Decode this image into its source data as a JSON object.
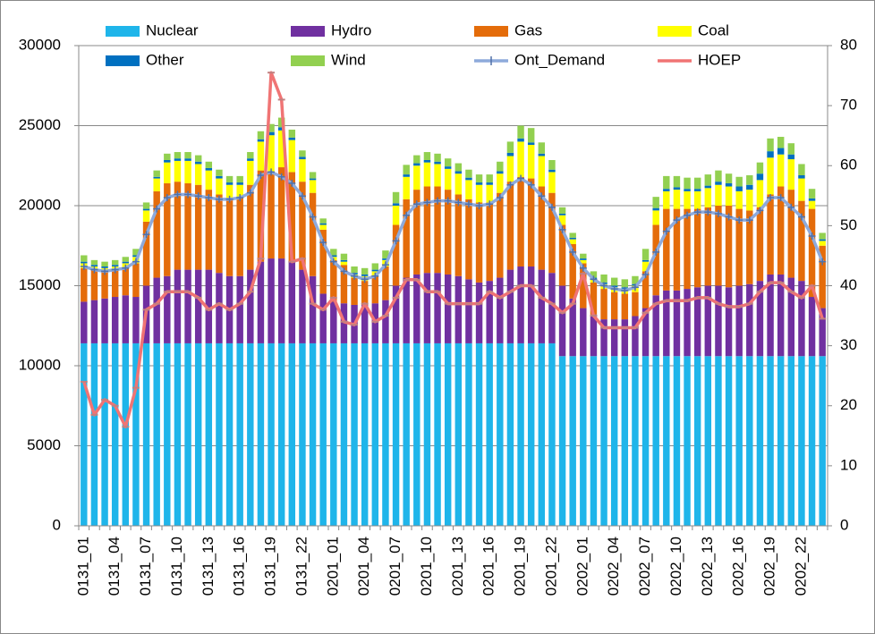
{
  "chart_data": {
    "type": "bar",
    "stacked": true,
    "grid": true,
    "categories": [
      "0131_01",
      null,
      null,
      "0131_04",
      null,
      null,
      "0131_07",
      null,
      null,
      "0131_10",
      null,
      null,
      "0131_13",
      null,
      null,
      "0131_16",
      null,
      null,
      "0131_19",
      null,
      null,
      "0131_22",
      null,
      null,
      "0201_01",
      null,
      null,
      "0201_04",
      null,
      null,
      "0201_07",
      null,
      null,
      "0201_10",
      null,
      null,
      "0201_13",
      null,
      null,
      "0201_16",
      null,
      null,
      "0201_19",
      null,
      null,
      "0201_22",
      null,
      null,
      "0202_01",
      null,
      null,
      "0202_04",
      null,
      null,
      "0202_07",
      null,
      null,
      "0202_10",
      null,
      null,
      "0202_13",
      null,
      null,
      "0202_16",
      null,
      null,
      "0202_19",
      null,
      null,
      "0202_22",
      null,
      null
    ],
    "ylim": [
      0,
      30000
    ],
    "yticks": [
      0,
      5000,
      10000,
      15000,
      20000,
      25000,
      30000
    ],
    "y2lim": [
      0,
      80
    ],
    "y2ticks": [
      0,
      10,
      20,
      30,
      40,
      50,
      60,
      70,
      80
    ],
    "series": [
      {
        "name": "Nuclear",
        "color": "#1fb5ea",
        "values": [
          11400,
          11400,
          11400,
          11400,
          11400,
          11400,
          11400,
          11400,
          11400,
          11400,
          11400,
          11400,
          11400,
          11400,
          11400,
          11400,
          11400,
          11400,
          11400,
          11400,
          11400,
          11400,
          11400,
          11400,
          11400,
          11400,
          11400,
          11400,
          11400,
          11400,
          11400,
          11400,
          11400,
          11400,
          11400,
          11400,
          11400,
          11400,
          11400,
          11400,
          11400,
          11400,
          11400,
          11400,
          11400,
          11400,
          10600,
          10600,
          10600,
          10600,
          10600,
          10600,
          10600,
          10600,
          10600,
          10600,
          10600,
          10600,
          10600,
          10600,
          10600,
          10600,
          10600,
          10600,
          10600,
          10600,
          10600,
          10600,
          10600,
          10600,
          10600,
          10600
        ]
      },
      {
        "name": "Hydro",
        "color": "#7030a0",
        "values": [
          2600,
          2700,
          2800,
          2900,
          3000,
          2900,
          3600,
          4100,
          4200,
          4600,
          4600,
          4600,
          4600,
          4400,
          4200,
          4200,
          4600,
          5100,
          5300,
          5300,
          5100,
          4600,
          4200,
          3100,
          2600,
          2500,
          2400,
          2400,
          2500,
          2700,
          3600,
          4100,
          4300,
          4400,
          4400,
          4300,
          4200,
          4000,
          3800,
          3900,
          4100,
          4600,
          4800,
          4800,
          4600,
          4400,
          4400,
          3600,
          3000,
          2600,
          2300,
          2300,
          2300,
          2500,
          3000,
          3800,
          4100,
          4100,
          4200,
          4300,
          4400,
          4400,
          4300,
          4400,
          4500,
          4700,
          5100,
          5100,
          4900,
          4700,
          3700,
          3000
        ]
      },
      {
        "name": "Gas",
        "color": "#e46c0a",
        "values": [
          2100,
          1900,
          1700,
          1700,
          1700,
          2100,
          4000,
          5400,
          5800,
          5500,
          5400,
          5300,
          5000,
          4900,
          4900,
          4900,
          5300,
          5700,
          5300,
          5700,
          5600,
          5500,
          5200,
          4000,
          2600,
          2400,
          1700,
          1500,
          1700,
          2100,
          3800,
          4900,
          5300,
          5400,
          5400,
          5300,
          5100,
          5000,
          5000,
          4900,
          5300,
          5500,
          5600,
          5500,
          5200,
          5000,
          3800,
          3400,
          2800,
          2000,
          1900,
          1700,
          1600,
          1500,
          2300,
          4400,
          5100,
          5100,
          5000,
          4900,
          4900,
          5000,
          5100,
          4800,
          4600,
          4600,
          5000,
          5500,
          5500,
          5000,
          5500,
          3900
        ]
      },
      {
        "name": "Coal",
        "color": "#ffff00",
        "values": [
          300,
          200,
          200,
          200,
          300,
          400,
          700,
          800,
          1300,
          1300,
          1400,
          1300,
          1200,
          1000,
          800,
          800,
          1500,
          1800,
          2400,
          2300,
          2000,
          1400,
          800,
          300,
          200,
          200,
          200,
          300,
          300,
          400,
          1200,
          1400,
          1500,
          1500,
          1400,
          1300,
          1300,
          1200,
          1100,
          1100,
          1200,
          1600,
          2200,
          2100,
          1900,
          1300,
          600,
          300,
          200,
          200,
          300,
          300,
          300,
          400,
          600,
          900,
          1100,
          1200,
          1100,
          1100,
          1200,
          1300,
          1200,
          1100,
          1300,
          1700,
          2300,
          2000,
          1900,
          1400,
          500,
          300
        ]
      },
      {
        "name": "Other",
        "color": "#0070c0",
        "values": [
          100,
          100,
          100,
          100,
          100,
          100,
          100,
          100,
          150,
          150,
          150,
          150,
          150,
          150,
          150,
          150,
          150,
          150,
          200,
          200,
          150,
          150,
          100,
          100,
          100,
          100,
          100,
          100,
          100,
          100,
          150,
          150,
          150,
          150,
          150,
          150,
          150,
          150,
          150,
          150,
          150,
          200,
          200,
          150,
          150,
          150,
          100,
          100,
          100,
          100,
          100,
          100,
          100,
          100,
          100,
          150,
          150,
          150,
          150,
          150,
          150,
          200,
          200,
          300,
          300,
          400,
          400,
          400,
          300,
          200,
          150,
          100
        ]
      },
      {
        "name": "Wind",
        "color": "#92d050",
        "values": [
          400,
          300,
          300,
          300,
          300,
          400,
          400,
          400,
          400,
          400,
          400,
          400,
          400,
          400,
          400,
          400,
          400,
          500,
          500,
          600,
          500,
          400,
          400,
          300,
          400,
          400,
          400,
          400,
          400,
          500,
          700,
          600,
          500,
          500,
          500,
          500,
          500,
          500,
          500,
          500,
          600,
          700,
          800,
          900,
          700,
          600,
          400,
          300,
          300,
          400,
          500,
          500,
          500,
          500,
          700,
          700,
          800,
          700,
          700,
          700,
          700,
          700,
          600,
          600,
          600,
          700,
          800,
          700,
          700,
          700,
          600,
          400
        ]
      },
      {
        "name": "Ont_Demand",
        "type": "line",
        "color": "#8eaadb",
        "values": [
          16200,
          16000,
          15900,
          16000,
          16100,
          16500,
          18200,
          19800,
          20500,
          20700,
          20700,
          20600,
          20500,
          20400,
          20400,
          20500,
          20800,
          21900,
          22100,
          21800,
          21400,
          20600,
          19300,
          17700,
          16500,
          15900,
          15600,
          15400,
          15600,
          16300,
          17800,
          19400,
          20100,
          20200,
          20300,
          20300,
          20200,
          20100,
          20000,
          20100,
          20500,
          21300,
          21700,
          21300,
          20600,
          19900,
          18500,
          17100,
          16100,
          15400,
          15000,
          14800,
          14700,
          14900,
          15700,
          17100,
          18400,
          19100,
          19400,
          19600,
          19600,
          19500,
          19300,
          19100,
          19100,
          19700,
          20500,
          20500,
          19900,
          19300,
          18100,
          16500
        ]
      },
      {
        "name": "HOEP",
        "type": "line",
        "axis": "y2",
        "color": "#f07474",
        "values": [
          24,
          18.5,
          21,
          20,
          16.5,
          23,
          36,
          37,
          39,
          39,
          39,
          38,
          36,
          37,
          36,
          37,
          39,
          44.5,
          75.5,
          71,
          44,
          44.5,
          37,
          36,
          38,
          34,
          33.5,
          37,
          34,
          35,
          38,
          41,
          41,
          39,
          39,
          37,
          37,
          37,
          37,
          39,
          38,
          39,
          40,
          40,
          38,
          37,
          35.5,
          37,
          42,
          35,
          33,
          33,
          33,
          33,
          35.5,
          37,
          37.5,
          37.5,
          37.5,
          38,
          38,
          37,
          36.5,
          36.5,
          37,
          39,
          40.5,
          40.5,
          39,
          38,
          40,
          34.5
        ]
      }
    ]
  }
}
